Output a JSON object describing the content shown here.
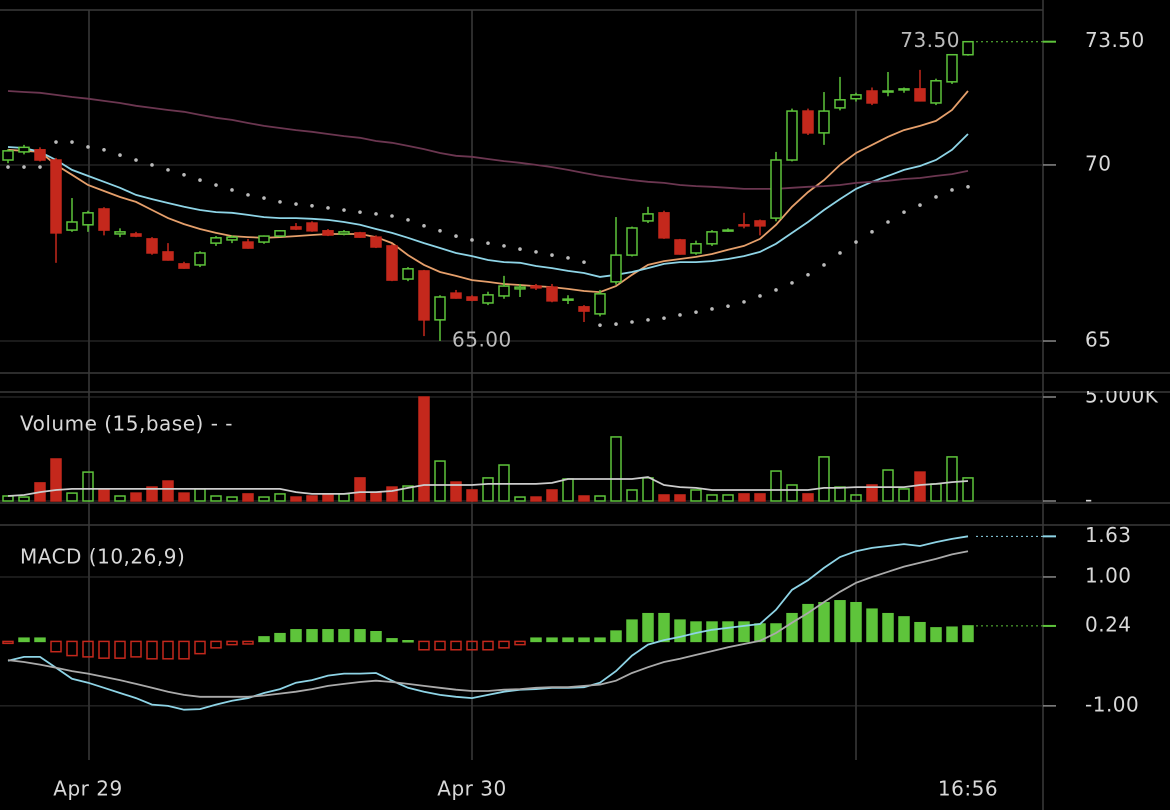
{
  "chart_data": [
    {
      "type": "candlestick",
      "open": [
        70.14,
        70.37,
        70.43,
        70.14,
        68.15,
        68.3,
        68.75,
        68.04,
        68.04,
        67.9,
        67.53,
        67.19,
        67.16,
        67.78,
        67.87,
        67.81,
        67.81,
        67.98,
        68.24,
        68.35,
        68.13,
        68.04,
        68.07,
        67.95,
        67.7,
        66.76,
        66.99,
        65.6,
        66.36,
        66.25,
        66.08,
        66.28,
        66.48,
        66.56,
        66.53,
        66.16,
        65.97,
        65.77,
        66.68,
        67.44,
        68.41,
        68.64,
        67.87,
        67.5,
        67.76,
        68.13,
        68.3,
        68.41,
        68.49,
        70.14,
        71.53,
        70.91,
        71.62,
        71.88,
        72.1,
        72.07,
        72.13,
        72.16,
        71.76,
        72.36,
        73.13
      ],
      "high": [
        70.45,
        70.57,
        70.5,
        70.2,
        69.06,
        68.7,
        68.8,
        68.2,
        68.1,
        67.95,
        67.78,
        67.25,
        67.55,
        67.98,
        68,
        67.9,
        68,
        68.15,
        68.35,
        68.4,
        68.18,
        68.15,
        68.1,
        68,
        67.75,
        67.1,
        67.02,
        66.3,
        66.45,
        66.3,
        66.4,
        66.85,
        66.62,
        66.62,
        66.62,
        66.3,
        66.02,
        66.45,
        68.52,
        68.25,
        68.81,
        68.7,
        67.9,
        67.85,
        68.15,
        68.2,
        68.64,
        68.45,
        70.37,
        71.6,
        71.6,
        72.07,
        72.5,
        72.05,
        72.2,
        72.64,
        72.2,
        72.7,
        72.45,
        73.15,
        73.5
      ],
      "low": [
        70.05,
        70.3,
        70.1,
        67.22,
        68.1,
        68.1,
        68,
        67.95,
        67.95,
        67.45,
        67.28,
        67.05,
        67.1,
        67.7,
        67.78,
        67.62,
        67.76,
        67.95,
        68.15,
        68.1,
        67.98,
        68,
        67.93,
        67.64,
        66.7,
        66.7,
        65.14,
        65,
        66.2,
        66.13,
        66.02,
        66.2,
        66.25,
        66.45,
        66.1,
        66.05,
        65.54,
        65.7,
        66.6,
        67.4,
        68.35,
        67.9,
        67.45,
        67.45,
        67.7,
        68.1,
        68.2,
        68,
        68.4,
        70.1,
        70.85,
        70.57,
        71.55,
        71.8,
        71.7,
        71.95,
        72.05,
        71.8,
        71.7,
        72.3,
        73.1
      ],
      "close": [
        70.4,
        70.5,
        70.14,
        68.07,
        68.38,
        68.64,
        68.15,
        68.1,
        67.98,
        67.5,
        67.3,
        67.07,
        67.5,
        67.93,
        67.95,
        67.64,
        67.98,
        68.13,
        68.18,
        68.13,
        68.01,
        68.1,
        67.95,
        67.67,
        66.73,
        67.05,
        65.6,
        66.25,
        66.22,
        66.16,
        66.31,
        66.56,
        66.53,
        66.51,
        66.14,
        66.19,
        65.85,
        66.34,
        67.44,
        68.21,
        68.61,
        67.93,
        67.47,
        67.76,
        68.1,
        68.15,
        68.27,
        68.27,
        70.14,
        71.53,
        70.91,
        71.53,
        71.85,
        71.99,
        71.76,
        72.1,
        72.16,
        71.82,
        72.39,
        73.13,
        73.5
      ],
      "up_color": "#5ec43b",
      "down_color": "#c4281c",
      "series": [
        {
          "type": "line",
          "color": "#e59f6b",
          "values": [
            70.43,
            70.4,
            70.37,
            70.0,
            69.72,
            69.43,
            69.26,
            69.09,
            68.95,
            68.72,
            68.49,
            68.32,
            68.18,
            68.07,
            67.98,
            67.95,
            67.93,
            67.95,
            67.98,
            68.01,
            68.04,
            68.04,
            68.04,
            67.95,
            67.78,
            67.44,
            67.16,
            66.96,
            66.85,
            66.73,
            66.68,
            66.62,
            66.59,
            66.56,
            66.53,
            66.48,
            66.42,
            66.39,
            66.56,
            66.88,
            67.16,
            67.27,
            67.33,
            67.39,
            67.47,
            67.59,
            67.7,
            67.9,
            68.3,
            68.81,
            69.23,
            69.57,
            70.0,
            70.34,
            70.57,
            70.8,
            70.99,
            71.11,
            71.25,
            71.56,
            72.1
          ]
        },
        {
          "type": "line",
          "color": "#8ed4e6",
          "values": [
            70.51,
            70.48,
            70.37,
            70.14,
            69.86,
            69.69,
            69.52,
            69.35,
            69.15,
            69.03,
            68.92,
            68.81,
            68.72,
            68.66,
            68.64,
            68.58,
            68.52,
            68.49,
            68.49,
            68.47,
            68.44,
            68.38,
            68.3,
            68.18,
            68.07,
            67.93,
            67.78,
            67.64,
            67.5,
            67.41,
            67.3,
            67.24,
            67.22,
            67.13,
            67.07,
            66.99,
            66.93,
            66.82,
            66.88,
            66.96,
            67.07,
            67.19,
            67.24,
            67.24,
            67.27,
            67.33,
            67.41,
            67.53,
            67.76,
            68.07,
            68.38,
            68.72,
            69.03,
            69.32,
            69.52,
            69.69,
            69.86,
            69.97,
            70.14,
            70.43,
            70.88
          ]
        },
        {
          "type": "line",
          "color": "#6b3650",
          "values": [
            72.1,
            72.07,
            72.05,
            71.99,
            71.93,
            71.88,
            71.82,
            71.76,
            71.68,
            71.62,
            71.56,
            71.51,
            71.42,
            71.34,
            71.28,
            71.19,
            71.11,
            71.05,
            70.99,
            70.94,
            70.88,
            70.82,
            70.77,
            70.68,
            70.63,
            70.54,
            70.45,
            70.34,
            70.26,
            70.23,
            70.17,
            70.11,
            70.06,
            70.0,
            69.94,
            69.86,
            69.77,
            69.69,
            69.63,
            69.57,
            69.52,
            69.49,
            69.43,
            69.4,
            69.38,
            69.35,
            69.32,
            69.32,
            69.32,
            69.35,
            69.38,
            69.4,
            69.43,
            69.49,
            69.52,
            69.55,
            69.6,
            69.63,
            69.69,
            69.74,
            69.83
          ]
        },
        {
          "type": "dots",
          "color": "#bbbbbb",
          "values": [
            69.94,
            69.94,
            69.94,
            70.65,
            70.65,
            70.51,
            70.43,
            70.28,
            70.14,
            70.0,
            69.86,
            69.72,
            69.57,
            69.43,
            69.29,
            69.15,
            69.06,
            68.95,
            68.89,
            68.84,
            68.78,
            68.72,
            68.66,
            68.61,
            68.55,
            68.44,
            68.27,
            68.13,
            67.98,
            67.87,
            67.78,
            67.7,
            67.61,
            67.53,
            67.44,
            67.36,
            67.24,
            65.45,
            65.48,
            65.54,
            65.6,
            65.65,
            65.74,
            65.82,
            65.91,
            65.99,
            66.11,
            66.28,
            66.45,
            66.65,
            66.88,
            67.16,
            67.5,
            67.81,
            68.1,
            68.38,
            68.66,
            68.86,
            69.09,
            69.29,
            69.38
          ]
        }
      ],
      "ylim": [
        64.12,
        74.4
      ],
      "yticks": [
        65,
        70,
        {
          "value": 73.5,
          "label": "73.50"
        }
      ],
      "annotations": [
        {
          "value": 73.5,
          "label": "73.50"
        },
        {
          "value": 65,
          "label": "65.00"
        }
      ],
      "grid": true
    },
    {
      "type": "bar",
      "title": "Volume (15,base) - -",
      "values": [
        240,
        190,
        870,
        2020,
        380,
        1390,
        580,
        240,
        380,
        670,
        960,
        380,
        580,
        240,
        190,
        340,
        190,
        340,
        190,
        240,
        290,
        340,
        1110,
        380,
        670,
        720,
        5000,
        1920,
        910,
        530,
        1110,
        1730,
        190,
        190,
        530,
        1060,
        240,
        240,
        3080,
        530,
        1110,
        290,
        290,
        530,
        290,
        290,
        340,
        340,
        1440,
        770,
        340,
        2120,
        670,
        290,
        770,
        1490,
        580,
        1390,
        820,
        2120,
        1110
      ],
      "up_color": "#5ec43b",
      "down_color": "#c4281c",
      "series": [
        {
          "type": "line",
          "color": "#cccccc",
          "values": [
            240,
            290,
            430,
            530,
            580,
            580,
            580,
            580,
            580,
            580,
            580,
            580,
            580,
            580,
            580,
            580,
            580,
            580,
            430,
            340,
            340,
            340,
            430,
            430,
            480,
            630,
            770,
            770,
            770,
            770,
            820,
            820,
            820,
            820,
            870,
            1060,
            1060,
            1060,
            1060,
            1060,
            1150,
            770,
            670,
            630,
            530,
            530,
            530,
            530,
            530,
            530,
            530,
            630,
            630,
            670,
            670,
            670,
            670,
            770,
            820,
            910,
            960
          ]
        }
      ],
      "ylim": [
        0,
        5000
      ],
      "yticks": [
        {
          "value": 0,
          "label": "-"
        },
        {
          "value": 5000,
          "label": "5.000K"
        }
      ],
      "grid": true
    },
    {
      "type": "macd",
      "title": "MACD (10,26,9)",
      "categories": [
        null,
        null,
        null,
        null,
        null,
        "Apr 29",
        null,
        null,
        null,
        null,
        null,
        null,
        null,
        null,
        null,
        null,
        null,
        null,
        null,
        null,
        null,
        null,
        null,
        null,
        null,
        null,
        null,
        null,
        null,
        "Apr 30",
        null,
        null,
        null,
        null,
        null,
        null,
        null,
        null,
        null,
        null,
        null,
        null,
        null,
        null,
        null,
        null,
        null,
        null,
        null,
        null,
        null,
        null,
        null,
        null,
        null,
        null,
        null,
        null,
        null,
        null,
        "16:56"
      ],
      "values": [
        -0.03,
        0.05,
        0.05,
        -0.16,
        -0.22,
        -0.24,
        -0.26,
        -0.26,
        -0.24,
        -0.27,
        -0.27,
        -0.27,
        -0.19,
        -0.1,
        -0.05,
        -0.04,
        0.07,
        0.12,
        0.18,
        0.18,
        0.18,
        0.18,
        0.18,
        0.15,
        0.04,
        0.01,
        -0.13,
        -0.13,
        -0.13,
        -0.13,
        -0.13,
        -0.1,
        -0.05,
        0.05,
        0.05,
        0.05,
        0.05,
        0.05,
        0.16,
        0.33,
        0.43,
        0.43,
        0.33,
        0.3,
        0.3,
        0.3,
        0.3,
        0.27,
        0.27,
        0.43,
        0.57,
        0.6,
        0.63,
        0.6,
        0.5,
        0.43,
        0.38,
        0.29,
        0.21,
        0.22,
        0.24
      ],
      "up_color": "#5ec43b",
      "down_color": "#c4281c",
      "series": [
        {
          "type": "line",
          "color": "#8ed4e6",
          "values": [
            -0.3,
            -0.24,
            -0.24,
            -0.41,
            -0.58,
            -0.64,
            -0.72,
            -0.8,
            -0.88,
            -0.98,
            -1.0,
            -1.06,
            -1.05,
            -0.98,
            -0.92,
            -0.88,
            -0.8,
            -0.74,
            -0.64,
            -0.6,
            -0.53,
            -0.5,
            -0.5,
            -0.49,
            -0.61,
            -0.72,
            -0.78,
            -0.83,
            -0.86,
            -0.88,
            -0.83,
            -0.78,
            -0.75,
            -0.74,
            -0.72,
            -0.72,
            -0.71,
            -0.64,
            -0.46,
            -0.22,
            -0.05,
            0.02,
            0.07,
            0.13,
            0.18,
            0.21,
            0.24,
            0.27,
            0.49,
            0.8,
            0.95,
            1.14,
            1.31,
            1.4,
            1.45,
            1.48,
            1.51,
            1.48,
            1.54,
            1.59,
            1.63
          ]
        },
        {
          "type": "line",
          "color": "#aaaaaa",
          "values": [
            -0.29,
            -0.32,
            -0.36,
            -0.41,
            -0.46,
            -0.5,
            -0.55,
            -0.6,
            -0.66,
            -0.72,
            -0.78,
            -0.83,
            -0.86,
            -0.86,
            -0.86,
            -0.86,
            -0.84,
            -0.81,
            -0.78,
            -0.74,
            -0.69,
            -0.66,
            -0.63,
            -0.61,
            -0.63,
            -0.66,
            -0.69,
            -0.72,
            -0.75,
            -0.77,
            -0.77,
            -0.75,
            -0.74,
            -0.72,
            -0.71,
            -0.71,
            -0.69,
            -0.67,
            -0.61,
            -0.49,
            -0.4,
            -0.32,
            -0.27,
            -0.21,
            -0.15,
            -0.09,
            -0.04,
            0.01,
            0.13,
            0.29,
            0.44,
            0.61,
            0.77,
            0.91,
            1.0,
            1.08,
            1.16,
            1.22,
            1.28,
            1.35,
            1.4
          ]
        }
      ],
      "ylim": [
        -1.84,
        1.775
      ],
      "yticks": [
        {
          "value": -1,
          "label": "-1.00"
        },
        0.24,
        {
          "value": 1,
          "label": "1.00"
        },
        1.63
      ],
      "grid": true
    }
  ]
}
